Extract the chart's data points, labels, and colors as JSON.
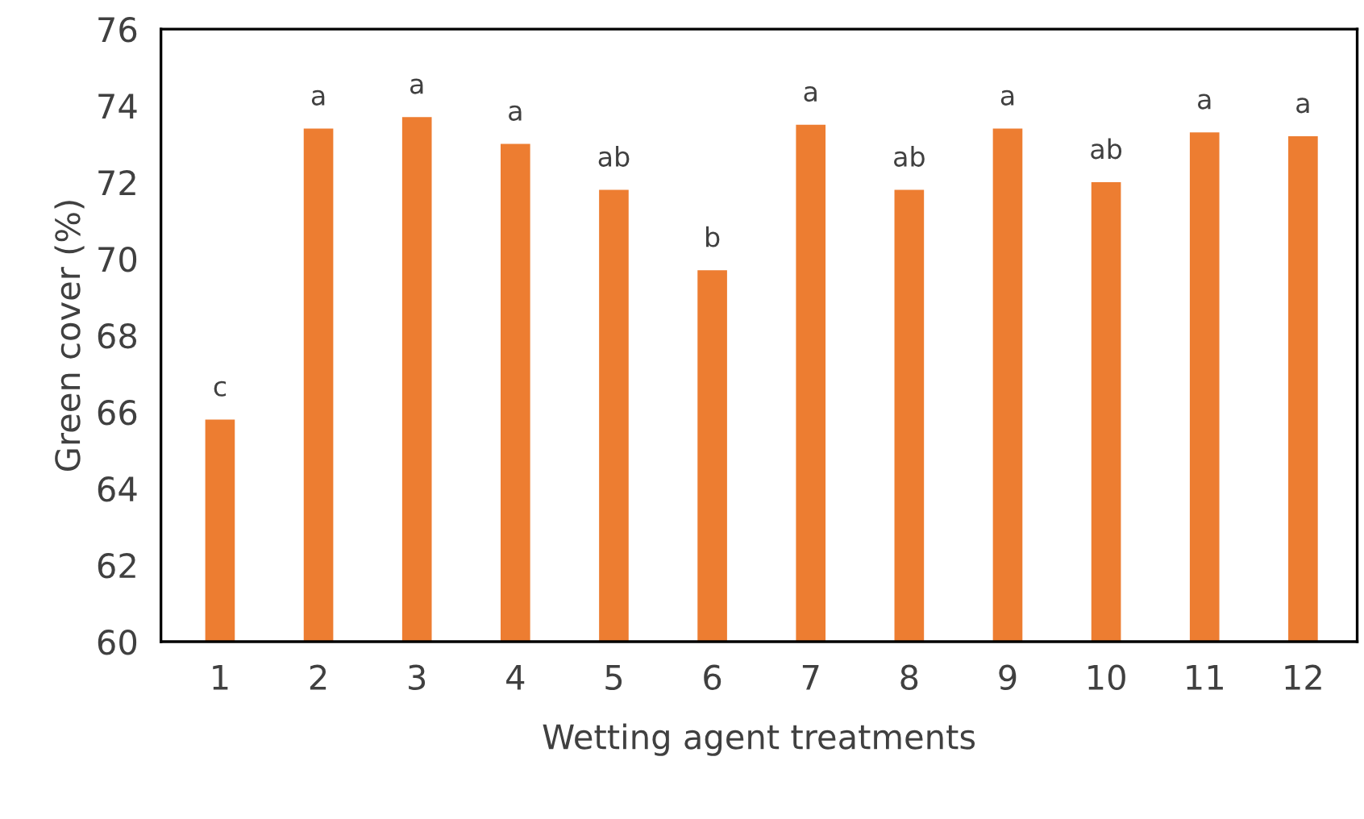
{
  "chart_data": {
    "type": "bar",
    "xlabel": "Wetting agent treatments",
    "ylabel": "Green cover (%)",
    "categories": [
      "1",
      "2",
      "3",
      "4",
      "5",
      "6",
      "7",
      "8",
      "9",
      "10",
      "11",
      "12"
    ],
    "values": [
      65.8,
      73.4,
      73.7,
      73.0,
      71.8,
      69.7,
      73.5,
      71.8,
      73.4,
      72.0,
      73.3,
      73.2
    ],
    "value_labels": [
      "c",
      "a",
      "a",
      "a",
      "ab",
      "b",
      "a",
      "ab",
      "a",
      "ab",
      "a",
      "a"
    ],
    "color": "#ed7d31",
    "ylim": [
      60,
      76
    ],
    "yticks": [
      60,
      62,
      64,
      66,
      68,
      70,
      72,
      74,
      76
    ],
    "grid": false
  }
}
